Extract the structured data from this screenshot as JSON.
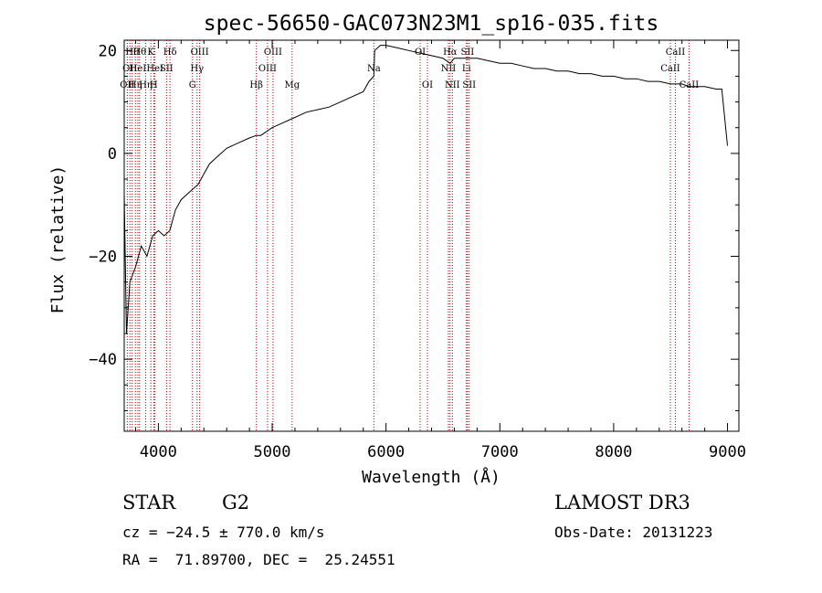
{
  "chart_data": {
    "type": "line",
    "title": "spec-56650-GAC073N23M1_sp16-035.fits",
    "xlabel": "Wavelength (Å)",
    "ylabel": "Flux (relative)",
    "xlim": [
      3700,
      9100
    ],
    "ylim": [
      -54,
      22
    ],
    "x_ticks": [
      4000,
      5000,
      6000,
      7000,
      8000,
      9000
    ],
    "y_ticks": [
      -40,
      -20,
      0,
      20
    ],
    "x_tick_labels": [
      "4000",
      "5000",
      "6000",
      "7000",
      "8000",
      "9000"
    ],
    "y_tick_labels": [
      "−40",
      "−20",
      "0",
      "20"
    ],
    "line_color": "#000000",
    "marker_color": "#aa0000",
    "series": [
      {
        "name": "flux",
        "x": [
          3700,
          3720,
          3750,
          3800,
          3850,
          3900,
          3950,
          4000,
          4050,
          4100,
          4150,
          4200,
          4250,
          4300,
          4350,
          4400,
          4450,
          4500,
          4600,
          4700,
          4800,
          4861,
          4900,
          5000,
          5100,
          5200,
          5300,
          5400,
          5500,
          5600,
          5700,
          5800,
          5850,
          5893,
          5900,
          5950,
          6000,
          6100,
          6200,
          6300,
          6400,
          6500,
          6563,
          6600,
          6700,
          6800,
          6900,
          7000,
          7100,
          7200,
          7300,
          7400,
          7500,
          7600,
          7700,
          7800,
          7900,
          8000,
          8100,
          8200,
          8300,
          8400,
          8500,
          8542,
          8600,
          8662,
          8700,
          8800,
          8900,
          8950,
          9000
        ],
        "y": [
          -8,
          -35,
          -25,
          -22,
          -18,
          -20,
          -16,
          -15,
          -16,
          -15,
          -11,
          -9,
          -8,
          -7,
          -6,
          -4,
          -2,
          -1,
          1,
          2,
          3,
          3.5,
          3.5,
          5,
          6,
          7,
          8,
          8.5,
          9,
          10,
          11,
          12,
          14,
          15,
          20,
          21,
          21,
          20.5,
          20,
          19.5,
          19,
          18.5,
          17.5,
          18.5,
          18.5,
          18.5,
          18,
          17.5,
          17.5,
          17,
          16.5,
          16.5,
          16,
          16,
          15.5,
          15.5,
          15,
          15,
          14.5,
          14.5,
          14,
          14,
          13.5,
          13.5,
          13.5,
          13,
          13,
          13,
          12.5,
          12.5,
          1.5
        ]
      }
    ],
    "line_markers": [
      {
        "w": 3727,
        "label": "OII",
        "row": 2
      },
      {
        "w": 3750,
        "label": "OII",
        "row": 1
      },
      {
        "w": 3770,
        "label": "Hθ",
        "row": 0
      },
      {
        "w": 3798,
        "label": "Hη",
        "row": 2
      },
      {
        "w": 3820,
        "label": "HeI",
        "row": 1
      },
      {
        "w": 3835,
        "label": "Hθ",
        "row": 0
      },
      {
        "w": 3889,
        "label": "Hη",
        "row": 2
      },
      {
        "w": 3934,
        "label": "K",
        "row": 0
      },
      {
        "w": 3960,
        "label": "H",
        "row": 2
      },
      {
        "w": 3970,
        "label": "HeI",
        "row": 1
      },
      {
        "w": 4072,
        "label": "SII",
        "row": 1
      },
      {
        "w": 4102,
        "label": "Hδ",
        "row": 0
      },
      {
        "w": 4300,
        "label": "G",
        "row": 2
      },
      {
        "w": 4340,
        "label": "Hγ",
        "row": 1
      },
      {
        "w": 4363,
        "label": "OIII",
        "row": 0
      },
      {
        "w": 4861,
        "label": "Hβ",
        "row": 2
      },
      {
        "w": 4959,
        "label": "OIII",
        "row": 1
      },
      {
        "w": 5007,
        "label": "OIII",
        "row": 0
      },
      {
        "w": 5175,
        "label": "Mg",
        "row": 2
      },
      {
        "w": 5893,
        "label": "Na",
        "row": 1
      },
      {
        "w": 6300,
        "label": "OI",
        "row": 0
      },
      {
        "w": 6364,
        "label": "OI",
        "row": 2
      },
      {
        "w": 6548,
        "label": "NII",
        "row": 1
      },
      {
        "w": 6563,
        "label": "Hα",
        "row": 0
      },
      {
        "w": 6583,
        "label": "NII",
        "row": 2
      },
      {
        "w": 6707,
        "label": "Li",
        "row": 1
      },
      {
        "w": 6716,
        "label": "SII",
        "row": 0
      },
      {
        "w": 6731,
        "label": "SII",
        "row": 2
      },
      {
        "w": 8498,
        "label": "CaII",
        "row": 1
      },
      {
        "w": 8542,
        "label": "CaII",
        "row": 0
      },
      {
        "w": 8662,
        "label": "CaII",
        "row": 2
      }
    ]
  },
  "info": {
    "object_class": "STAR",
    "subclass": "G2",
    "survey": "LAMOST DR3",
    "redshift": "cz = −24.5 ± 770.0 km/s",
    "obs_date": "Obs-Date: 20131223",
    "coords": "RA =  71.89700, DEC =  25.24551"
  }
}
